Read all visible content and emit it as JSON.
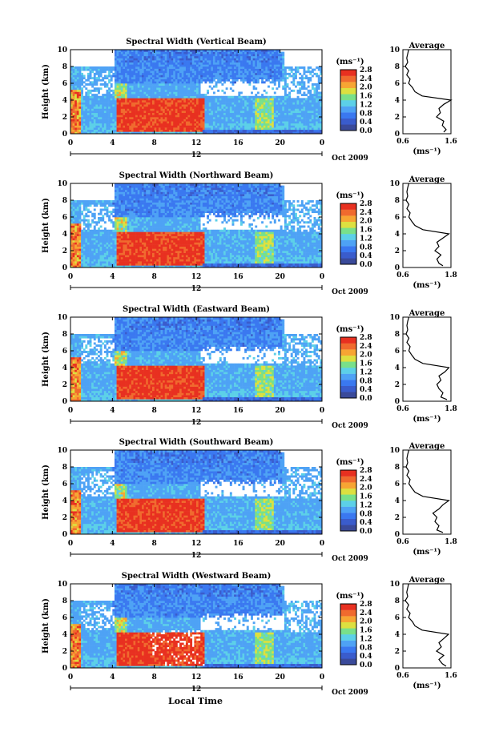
{
  "figure": {
    "common_xlabel": "Local Time",
    "colorbar": {
      "unit_label": "(ms⁻¹)",
      "ticks": [
        "0.0",
        "0.4",
        "0.8",
        "1.2",
        "1.6",
        "2.0",
        "2.4",
        "2.8"
      ],
      "colors": [
        "#3a4a9a",
        "#3a5ccc",
        "#3a78f0",
        "#4ea2f5",
        "#5cd0e8",
        "#79e08a",
        "#dde040",
        "#f7a533",
        "#f06a2e",
        "#e83020"
      ]
    }
  },
  "chart_data": [
    {
      "type": "heatmap",
      "title": "Spectral Width (Vertical Beam)",
      "ylabel": "Height (km)",
      "ylim": [
        0,
        10
      ],
      "yticks": [
        "0",
        "2",
        "4",
        "6",
        "8",
        "10"
      ],
      "xlim": [
        0,
        24
      ],
      "xticks": [
        "0",
        "4",
        "8",
        "12",
        "16",
        "20",
        "0"
      ],
      "date_label": "12",
      "month_label": "Oct 2009",
      "summary_regions": [
        {
          "time": [
            4.5,
            12.5
          ],
          "height": [
            0.3,
            4.2
          ],
          "value": 2.6
        },
        {
          "time": [
            0.1,
            0.8
          ],
          "height": [
            0.5,
            5.0
          ],
          "value": 2.3
        },
        {
          "time": [
            4.2,
            5.5
          ],
          "height": [
            4.0,
            9.0
          ],
          "value": 1.7
        },
        {
          "time": [
            17.5,
            19.5
          ],
          "height": [
            0.5,
            4.2
          ],
          "value": 1.5
        },
        {
          "time": [
            4.0,
            20.0
          ],
          "height": [
            6.0,
            10.0
          ],
          "value": 0.8
        }
      ],
      "average_profile": {
        "title": "Average",
        "xlabel": "(ms⁻¹)",
        "xlim": [
          0.6,
          1.6
        ],
        "xticks": [
          "0.6",
          "1.6"
        ],
        "ylim": [
          0,
          10
        ],
        "yticks": [
          "0",
          "2",
          "4",
          "6",
          "8",
          "10"
        ],
        "height": [
          0.2,
          0.5,
          1.0,
          1.5,
          2.0,
          2.5,
          3.0,
          3.5,
          4.0,
          4.5,
          5.0,
          5.5,
          6.0,
          6.5,
          7.0,
          7.5,
          8.0,
          8.5,
          9.0,
          9.5,
          10.0
        ],
        "value": [
          1.45,
          1.5,
          1.42,
          1.45,
          1.3,
          1.38,
          1.35,
          1.45,
          1.6,
          1.0,
          0.85,
          0.8,
          0.72,
          0.75,
          0.68,
          0.72,
          0.65,
          0.7,
          0.68,
          0.7,
          0.72
        ]
      }
    },
    {
      "type": "heatmap",
      "title": "Spectral Width (Northward Beam)",
      "ylabel": "Height (km)",
      "ylim": [
        0,
        10
      ],
      "yticks": [
        "0",
        "2",
        "4",
        "6",
        "8",
        "10"
      ],
      "xlim": [
        0,
        24
      ],
      "xticks": [
        "0",
        "4",
        "8",
        "12",
        "16",
        "20",
        "0"
      ],
      "date_label": "12",
      "month_label": "Oct 2009",
      "summary_regions": [
        {
          "time": [
            4.5,
            13.0
          ],
          "height": [
            0.3,
            4.2
          ],
          "value": 2.6
        },
        {
          "time": [
            0.1,
            0.8
          ],
          "height": [
            0.5,
            5.0
          ],
          "value": 2.2
        },
        {
          "time": [
            4.2,
            5.5
          ],
          "height": [
            4.0,
            9.0
          ],
          "value": 1.7
        },
        {
          "time": [
            17.5,
            19.5
          ],
          "height": [
            0.5,
            4.2
          ],
          "value": 1.5
        },
        {
          "time": [
            4.0,
            20.0
          ],
          "height": [
            6.0,
            10.0
          ],
          "value": 0.8
        }
      ],
      "average_profile": {
        "title": "Average",
        "xlabel": "(ms⁻¹)",
        "xlim": [
          0.6,
          1.8
        ],
        "xticks": [
          "0.6",
          "1.8"
        ],
        "ylim": [
          0,
          10
        ],
        "yticks": [
          "0",
          "2",
          "4",
          "6",
          "8",
          "10"
        ],
        "height": [
          0.2,
          0.5,
          1.0,
          1.5,
          2.0,
          2.5,
          3.0,
          3.5,
          4.0,
          4.5,
          5.0,
          5.5,
          6.0,
          6.5,
          7.0,
          7.5,
          8.0,
          8.5,
          9.0,
          9.5,
          10.0
        ],
        "value": [
          1.6,
          1.5,
          1.45,
          1.55,
          1.4,
          1.5,
          1.45,
          1.6,
          1.75,
          1.1,
          0.9,
          0.82,
          0.75,
          0.78,
          0.7,
          0.75,
          0.68,
          0.72,
          0.7,
          0.72,
          0.75
        ]
      }
    },
    {
      "type": "heatmap",
      "title": "Spectral Width (Eastward Beam)",
      "ylabel": "Height (km)",
      "ylim": [
        0,
        10
      ],
      "yticks": [
        "0",
        "2",
        "4",
        "6",
        "8",
        "10"
      ],
      "xlim": [
        0,
        24
      ],
      "xticks": [
        "0",
        "4",
        "8",
        "12",
        "16",
        "20",
        "0"
      ],
      "date_label": "12",
      "month_label": "Oct 2009",
      "summary_regions": [
        {
          "time": [
            4.5,
            12.5
          ],
          "height": [
            0.3,
            4.2
          ],
          "value": 2.5
        },
        {
          "time": [
            0.1,
            0.8
          ],
          "height": [
            0.5,
            5.0
          ],
          "value": 2.2
        },
        {
          "time": [
            4.2,
            5.5
          ],
          "height": [
            4.0,
            9.0
          ],
          "value": 1.7
        },
        {
          "time": [
            17.5,
            19.5
          ],
          "height": [
            0.5,
            4.2
          ],
          "value": 1.5
        },
        {
          "time": [
            4.0,
            20.0
          ],
          "height": [
            6.0,
            10.0
          ],
          "value": 0.8
        }
      ],
      "average_profile": {
        "title": "Average",
        "xlabel": "(ms⁻¹)",
        "xlim": [
          0.6,
          1.8
        ],
        "xticks": [
          "0.6",
          "1.8"
        ],
        "ylim": [
          0,
          10
        ],
        "yticks": [
          "0",
          "2",
          "4",
          "6",
          "8",
          "10"
        ],
        "height": [
          0.2,
          0.5,
          1.0,
          1.5,
          2.0,
          2.5,
          3.0,
          3.5,
          4.0,
          4.5,
          5.0,
          5.5,
          6.0,
          6.5,
          7.0,
          7.5,
          8.0,
          8.5,
          9.0,
          9.5,
          10.0
        ],
        "value": [
          1.7,
          1.55,
          1.6,
          1.5,
          1.45,
          1.55,
          1.5,
          1.65,
          1.75,
          1.1,
          0.9,
          0.82,
          0.75,
          0.78,
          0.7,
          0.75,
          0.68,
          0.72,
          0.7,
          0.72,
          0.75
        ]
      }
    },
    {
      "type": "heatmap",
      "title": "Spectral Width (Southward Beam)",
      "ylabel": "Height (km)",
      "ylim": [
        0,
        10
      ],
      "yticks": [
        "0",
        "2",
        "4",
        "6",
        "8",
        "10"
      ],
      "xlim": [
        0,
        24
      ],
      "xticks": [
        "0",
        "4",
        "8",
        "12",
        "16",
        "20",
        "0"
      ],
      "date_label": "12",
      "month_label": "Oct 2009",
      "summary_regions": [
        {
          "time": [
            4.5,
            13.0
          ],
          "height": [
            0.3,
            4.2
          ],
          "value": 2.6
        },
        {
          "time": [
            0.1,
            0.8
          ],
          "height": [
            0.5,
            5.0
          ],
          "value": 2.2
        },
        {
          "time": [
            4.2,
            5.5
          ],
          "height": [
            4.0,
            9.0
          ],
          "value": 1.7
        },
        {
          "time": [
            17.5,
            19.5
          ],
          "height": [
            0.5,
            4.2
          ],
          "value": 1.5
        },
        {
          "time": [
            4.0,
            20.0
          ],
          "height": [
            6.0,
            10.0
          ],
          "value": 0.8
        }
      ],
      "average_profile": {
        "title": "Average",
        "xlabel": "(ms⁻¹)",
        "xlim": [
          0.6,
          1.8
        ],
        "xticks": [
          "0.6",
          "1.8"
        ],
        "ylim": [
          0,
          10
        ],
        "yticks": [
          "0",
          "2",
          "4",
          "6",
          "8",
          "10"
        ],
        "height": [
          0.2,
          0.5,
          1.0,
          1.5,
          2.0,
          2.5,
          3.0,
          3.5,
          4.0,
          4.5,
          5.0,
          5.5,
          6.0,
          6.5,
          7.0,
          7.5,
          8.0,
          8.5,
          9.0,
          9.5,
          10.0
        ],
        "value": [
          1.6,
          1.45,
          1.5,
          1.4,
          1.45,
          1.35,
          1.5,
          1.6,
          1.75,
          1.1,
          0.9,
          0.82,
          0.75,
          0.78,
          0.7,
          0.75,
          0.68,
          0.72,
          0.7,
          0.72,
          0.75
        ]
      }
    },
    {
      "type": "heatmap",
      "title": "Spectral Width (Westward Beam)",
      "ylabel": "Height (km)",
      "ylim": [
        0,
        10
      ],
      "yticks": [
        "0",
        "2",
        "4",
        "6",
        "8",
        "10"
      ],
      "xlim": [
        0,
        24
      ],
      "xticks": [
        "0",
        "4",
        "8",
        "12",
        "16",
        "20",
        "0"
      ],
      "date_label": "12",
      "month_label": "Oct 2009",
      "summary_regions": [
        {
          "time": [
            4.5,
            13.0
          ],
          "height": [
            0.3,
            4.2
          ],
          "value": 2.6
        },
        {
          "time": [
            0.1,
            0.8
          ],
          "height": [
            0.5,
            5.0
          ],
          "value": 2.2
        },
        {
          "time": [
            4.2,
            5.5
          ],
          "height": [
            4.0,
            9.0
          ],
          "value": 1.7
        },
        {
          "time": [
            17.5,
            19.5
          ],
          "height": [
            0.5,
            4.2
          ],
          "value": 1.5
        },
        {
          "time": [
            4.0,
            20.0
          ],
          "height": [
            6.0,
            10.0
          ],
          "value": 0.8
        }
      ],
      "average_profile": {
        "title": "Average",
        "xlabel": "(ms⁻¹)",
        "xlim": [
          0.6,
          1.6
        ],
        "xticks": [
          "0.6",
          "1.6"
        ],
        "ylim": [
          0,
          10
        ],
        "yticks": [
          "0",
          "2",
          "4",
          "6",
          "8",
          "10"
        ],
        "height": [
          0.2,
          0.5,
          1.0,
          1.5,
          2.0,
          2.5,
          3.0,
          3.5,
          4.0,
          4.5,
          5.0,
          5.5,
          6.0,
          6.5,
          7.0,
          7.5,
          8.0,
          8.5,
          9.0,
          9.5,
          10.0
        ],
        "value": [
          1.5,
          1.42,
          1.35,
          1.45,
          1.3,
          1.4,
          1.35,
          1.45,
          1.55,
          1.0,
          0.85,
          0.8,
          0.72,
          0.75,
          0.68,
          0.72,
          0.65,
          0.7,
          0.68,
          0.7,
          0.72
        ]
      }
    }
  ]
}
